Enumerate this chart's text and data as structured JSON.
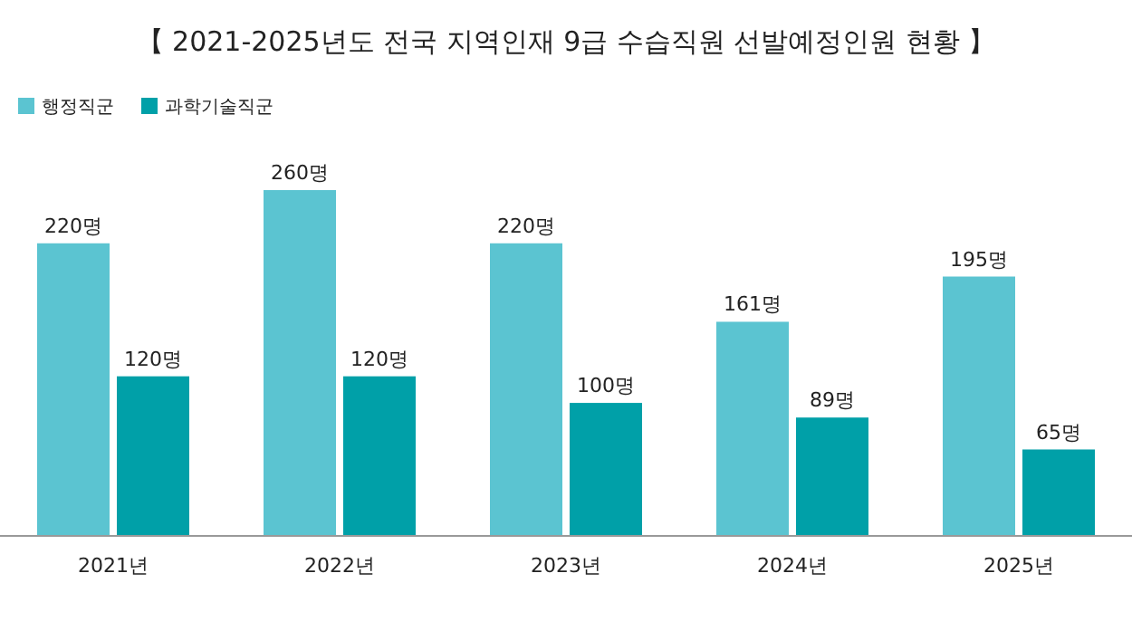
{
  "chart_data": {
    "type": "bar",
    "title": "【 2021-2025년도 전국 지역인재 9급 수습직원 선발예정인원 현황 】",
    "categories": [
      "2021년",
      "2022년",
      "2023년",
      "2024년",
      "2025년"
    ],
    "legend": "top left",
    "series": [
      {
        "name": "행정직군",
        "color": "#5bc4d1",
        "values": [
          220,
          260,
          220,
          161,
          195
        ],
        "value_labels": [
          "220명",
          "260명",
          "220명",
          "161명",
          "195명"
        ]
      },
      {
        "name": "과학기술직군",
        "color": "#00a0a8",
        "values": [
          120,
          120,
          100,
          89,
          65
        ],
        "value_labels": [
          "120명",
          "120명",
          "100명",
          "89명",
          "65명"
        ]
      }
    ]
  }
}
